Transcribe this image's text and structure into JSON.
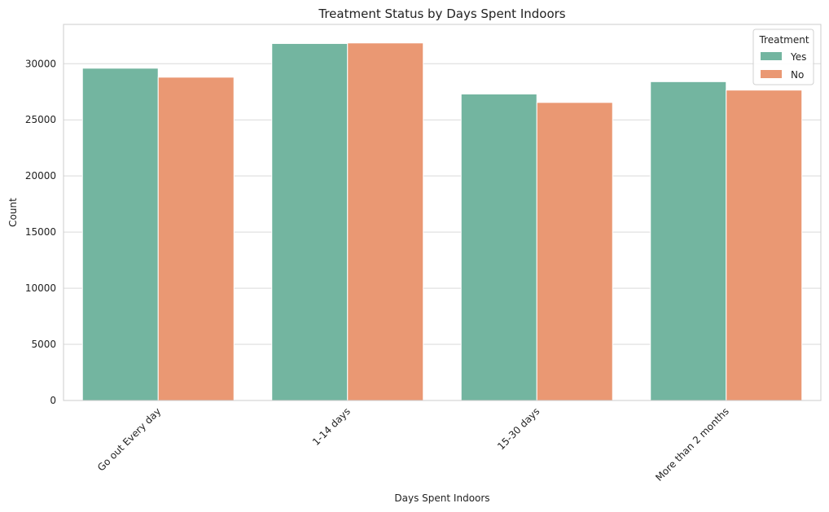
{
  "chart_data": {
    "type": "bar",
    "title": "Treatment Status by Days Spent Indoors",
    "xlabel": "Days Spent Indoors",
    "ylabel": "Count",
    "categories": [
      "Go out Every day",
      "1-14 days",
      "15-30 days",
      "More than 2 months"
    ],
    "series": [
      {
        "name": "Yes",
        "color": "#73b5a0",
        "values": [
          29600,
          31800,
          27300,
          28400
        ]
      },
      {
        "name": "No",
        "color": "#ea9873",
        "values": [
          28800,
          31850,
          26550,
          27650
        ]
      }
    ],
    "ylim": [
      0,
      33500
    ],
    "yticks": [
      0,
      5000,
      10000,
      15000,
      20000,
      25000,
      30000
    ],
    "grid": "horizontal",
    "legend": {
      "title": "Treatment",
      "placement": "top-right"
    },
    "xtick_rotation": 45
  }
}
